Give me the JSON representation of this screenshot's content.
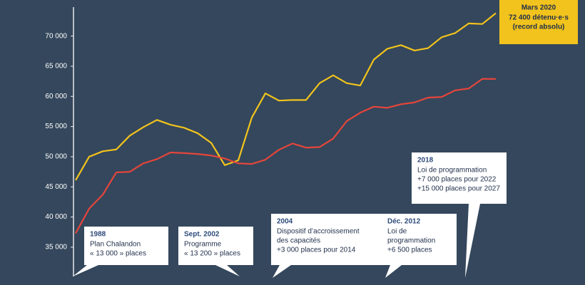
{
  "chart_data": {
    "type": "line",
    "categories": [
      null,
      null,
      null,
      null,
      null,
      null,
      null,
      null,
      null,
      null,
      null,
      null,
      null,
      null,
      null,
      null,
      null,
      null,
      null,
      null,
      null,
      null,
      null,
      null,
      null,
      null,
      null,
      null,
      null,
      null,
      null,
      null
    ],
    "series": [
      {
        "color": "#f2c31c",
        "values": [
          46100,
          50000,
          50900,
          51200,
          53500,
          54900,
          56100,
          55300,
          54800,
          53900,
          52300,
          48600,
          49400,
          56500,
          60500,
          59300,
          59400,
          59400,
          62200,
          63500,
          62200,
          61800,
          66100,
          67900,
          68500,
          67600,
          68000,
          69800,
          70500,
          72100,
          72000,
          73800
        ]
      },
      {
        "color": "#e5453b",
        "values": [
          37300,
          41400,
          43700,
          47400,
          47500,
          48900,
          49600,
          50700,
          50600,
          50450,
          50200,
          49700,
          48900,
          48800,
          49500,
          51150,
          52200,
          51500,
          51600,
          53000,
          55900,
          57300,
          58300,
          58100,
          58700,
          59000,
          59800,
          59900,
          61000,
          61300,
          62900,
          62900
        ]
      }
    ],
    "ylim": [
      30500,
      74800
    ],
    "yticks": [
      {
        "value": 35000,
        "label": "35 000"
      },
      {
        "value": 40000,
        "label": "40 000"
      },
      {
        "value": 45000,
        "label": "45 000"
      },
      {
        "value": 50000,
        "label": "50 000"
      },
      {
        "value": 55000,
        "label": "55 000"
      },
      {
        "value": 60000,
        "label": "60 000"
      },
      {
        "value": 65000,
        "label": "65 000"
      },
      {
        "value": 70000,
        "label": "70 000"
      }
    ],
    "annotations": [
      {
        "title": "Mars 2020",
        "lines": [
          "72 400 détenu·e·s",
          "(record absolu)"
        ]
      },
      {
        "title": "1988",
        "lines": [
          "Plan Chalandon",
          "« 13 000 » places"
        ]
      },
      {
        "title": "Sept. 2002",
        "lines": [
          "Programme",
          "« 13 200 » places"
        ]
      },
      {
        "title": "2004",
        "lines": [
          "Dispositif d’accroissement",
          "des capacités",
          "+3 000 places pour 2014"
        ]
      },
      {
        "title": "Déc. 2012",
        "lines": [
          "Loi de",
          "programmation",
          "+6 500 places"
        ]
      },
      {
        "title": "2018",
        "lines": [
          "Loi de programmation",
          "+7 000 places pour 2022",
          "+15 000 places pour 2027"
        ]
      }
    ]
  }
}
